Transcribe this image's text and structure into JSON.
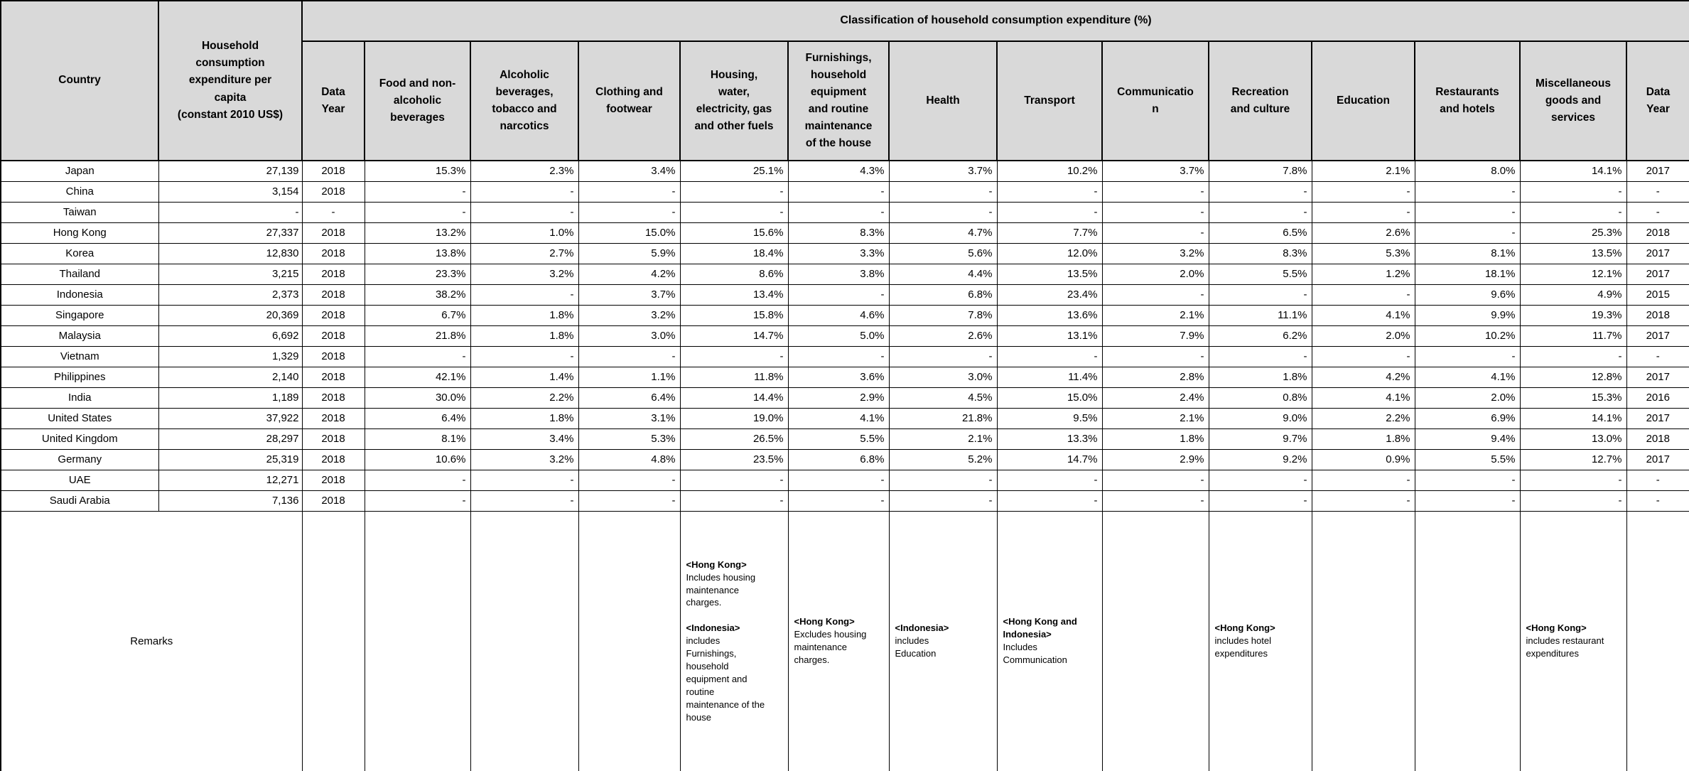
{
  "header": {
    "classification_title": "Classification of household consumption expenditure (%)"
  },
  "columns": [
    {
      "key": "country",
      "label": "Country"
    },
    {
      "key": "expenditure",
      "label": "Household\nconsumption\nexpenditure per\ncapita\n(constant 2010 US$)"
    },
    {
      "key": "data_year",
      "label": "Data\nYear"
    },
    {
      "key": "food",
      "label": "Food and non-\nalcoholic\nbeverages"
    },
    {
      "key": "alcoholic",
      "label": "Alcoholic\nbeverages,\ntobacco and\nnarcotics"
    },
    {
      "key": "clothing",
      "label": "Clothing and\nfootwear"
    },
    {
      "key": "housing",
      "label": "Housing,\nwater,\nelectricity, gas\nand other fuels"
    },
    {
      "key": "furnishings",
      "label": "Furnishings,\nhousehold\nequipment\nand routine\nmaintenance\nof the house"
    },
    {
      "key": "health",
      "label": "Health"
    },
    {
      "key": "transport",
      "label": "Transport"
    },
    {
      "key": "communication",
      "label": "Communicatio\nn"
    },
    {
      "key": "recreation",
      "label": "Recreation\nand culture"
    },
    {
      "key": "education",
      "label": "Education"
    },
    {
      "key": "restaurants",
      "label": "Restaurants\nand hotels"
    },
    {
      "key": "miscellaneous",
      "label": "Miscellaneous\ngoods and\nservices"
    },
    {
      "key": "data_year_2",
      "label": "Data\nYear"
    }
  ],
  "rows": [
    [
      "Japan",
      "27,139",
      "2018",
      "15.3%",
      "2.3%",
      "3.4%",
      "25.1%",
      "4.3%",
      "3.7%",
      "10.2%",
      "3.7%",
      "7.8%",
      "2.1%",
      "8.0%",
      "14.1%",
      "2017"
    ],
    [
      "China",
      "3,154",
      "2018",
      "-",
      "-",
      "-",
      "-",
      "-",
      "-",
      "-",
      "-",
      "-",
      "-",
      "-",
      "-",
      "-"
    ],
    [
      "Taiwan",
      "-",
      "-",
      "-",
      "-",
      "-",
      "-",
      "-",
      "-",
      "-",
      "-",
      "-",
      "-",
      "-",
      "-",
      "-"
    ],
    [
      "Hong Kong",
      "27,337",
      "2018",
      "13.2%",
      "1.0%",
      "15.0%",
      "15.6%",
      "8.3%",
      "4.7%",
      "7.7%",
      "-",
      "6.5%",
      "2.6%",
      "-",
      "25.3%",
      "2018"
    ],
    [
      "Korea",
      "12,830",
      "2018",
      "13.8%",
      "2.7%",
      "5.9%",
      "18.4%",
      "3.3%",
      "5.6%",
      "12.0%",
      "3.2%",
      "8.3%",
      "5.3%",
      "8.1%",
      "13.5%",
      "2017"
    ],
    [
      "Thailand",
      "3,215",
      "2018",
      "23.3%",
      "3.2%",
      "4.2%",
      "8.6%",
      "3.8%",
      "4.4%",
      "13.5%",
      "2.0%",
      "5.5%",
      "1.2%",
      "18.1%",
      "12.1%",
      "2017"
    ],
    [
      "Indonesia",
      "2,373",
      "2018",
      "38.2%",
      "-",
      "3.7%",
      "13.4%",
      "-",
      "6.8%",
      "23.4%",
      "-",
      "-",
      "-",
      "9.6%",
      "4.9%",
      "2015"
    ],
    [
      "Singapore",
      "20,369",
      "2018",
      "6.7%",
      "1.8%",
      "3.2%",
      "15.8%",
      "4.6%",
      "7.8%",
      "13.6%",
      "2.1%",
      "11.1%",
      "4.1%",
      "9.9%",
      "19.3%",
      "2018"
    ],
    [
      "Malaysia",
      "6,692",
      "2018",
      "21.8%",
      "1.8%",
      "3.0%",
      "14.7%",
      "5.0%",
      "2.6%",
      "13.1%",
      "7.9%",
      "6.2%",
      "2.0%",
      "10.2%",
      "11.7%",
      "2017"
    ],
    [
      "Vietnam",
      "1,329",
      "2018",
      "-",
      "-",
      "-",
      "-",
      "-",
      "-",
      "-",
      "-",
      "-",
      "-",
      "-",
      "-",
      "-"
    ],
    [
      "Philippines",
      "2,140",
      "2018",
      "42.1%",
      "1.4%",
      "1.1%",
      "11.8%",
      "3.6%",
      "3.0%",
      "11.4%",
      "2.8%",
      "1.8%",
      "4.2%",
      "4.1%",
      "12.8%",
      "2017"
    ],
    [
      "India",
      "1,189",
      "2018",
      "30.0%",
      "2.2%",
      "6.4%",
      "14.4%",
      "2.9%",
      "4.5%",
      "15.0%",
      "2.4%",
      "0.8%",
      "4.1%",
      "2.0%",
      "15.3%",
      "2016"
    ],
    [
      "United States",
      "37,922",
      "2018",
      "6.4%",
      "1.8%",
      "3.1%",
      "19.0%",
      "4.1%",
      "21.8%",
      "9.5%",
      "2.1%",
      "9.0%",
      "2.2%",
      "6.9%",
      "14.1%",
      "2017"
    ],
    [
      "United Kingdom",
      "28,297",
      "2018",
      "8.1%",
      "3.4%",
      "5.3%",
      "26.5%",
      "5.5%",
      "2.1%",
      "13.3%",
      "1.8%",
      "9.7%",
      "1.8%",
      "9.4%",
      "13.0%",
      "2018"
    ],
    [
      "Germany",
      "25,319",
      "2018",
      "10.6%",
      "3.2%",
      "4.8%",
      "23.5%",
      "6.8%",
      "5.2%",
      "14.7%",
      "2.9%",
      "9.2%",
      "0.9%",
      "5.5%",
      "12.7%",
      "2017"
    ],
    [
      "UAE",
      "12,271",
      "2018",
      "-",
      "-",
      "-",
      "-",
      "-",
      "-",
      "-",
      "-",
      "-",
      "-",
      "-",
      "-",
      "-"
    ],
    [
      "Saudi Arabia",
      "7,136",
      "2018",
      "-",
      "-",
      "-",
      "-",
      "-",
      "-",
      "-",
      "-",
      "-",
      "-",
      "-",
      "-",
      "-"
    ]
  ],
  "remarks": {
    "label": "Remarks",
    "by_column": {
      "6": [
        [
          "b",
          "<Hong Kong>"
        ],
        [
          "t",
          "Includes housing\nmaintenance\ncharges."
        ],
        [
          "t",
          ""
        ],
        [
          "b",
          "<Indonesia>"
        ],
        [
          "t",
          "includes\nFurnishings,\nhousehold\nequipment and\nroutine\nmaintenance of the\nhouse"
        ]
      ],
      "7": [
        [
          "b",
          "<Hong Kong>"
        ],
        [
          "t",
          "Excludes housing\nmaintenance\ncharges."
        ]
      ],
      "8": [
        [
          "b",
          "<Indonesia>"
        ],
        [
          "t",
          "includes\nEducation"
        ]
      ],
      "9": [
        [
          "b",
          "<Hong Kong and\nIndonesia>"
        ],
        [
          "t",
          "Includes\nCommunication"
        ]
      ],
      "11": [
        [
          "b",
          "<Hong Kong>"
        ],
        [
          "t",
          "includes hotel\nexpenditures"
        ]
      ],
      "14": [
        [
          "b",
          "<Hong Kong>"
        ],
        [
          "t",
          "includes restaurant\nexpenditures"
        ]
      ]
    }
  },
  "colors": {
    "header_bg": "#d9d9d9",
    "border": "#000000",
    "cell_bg": "#ffffff"
  }
}
